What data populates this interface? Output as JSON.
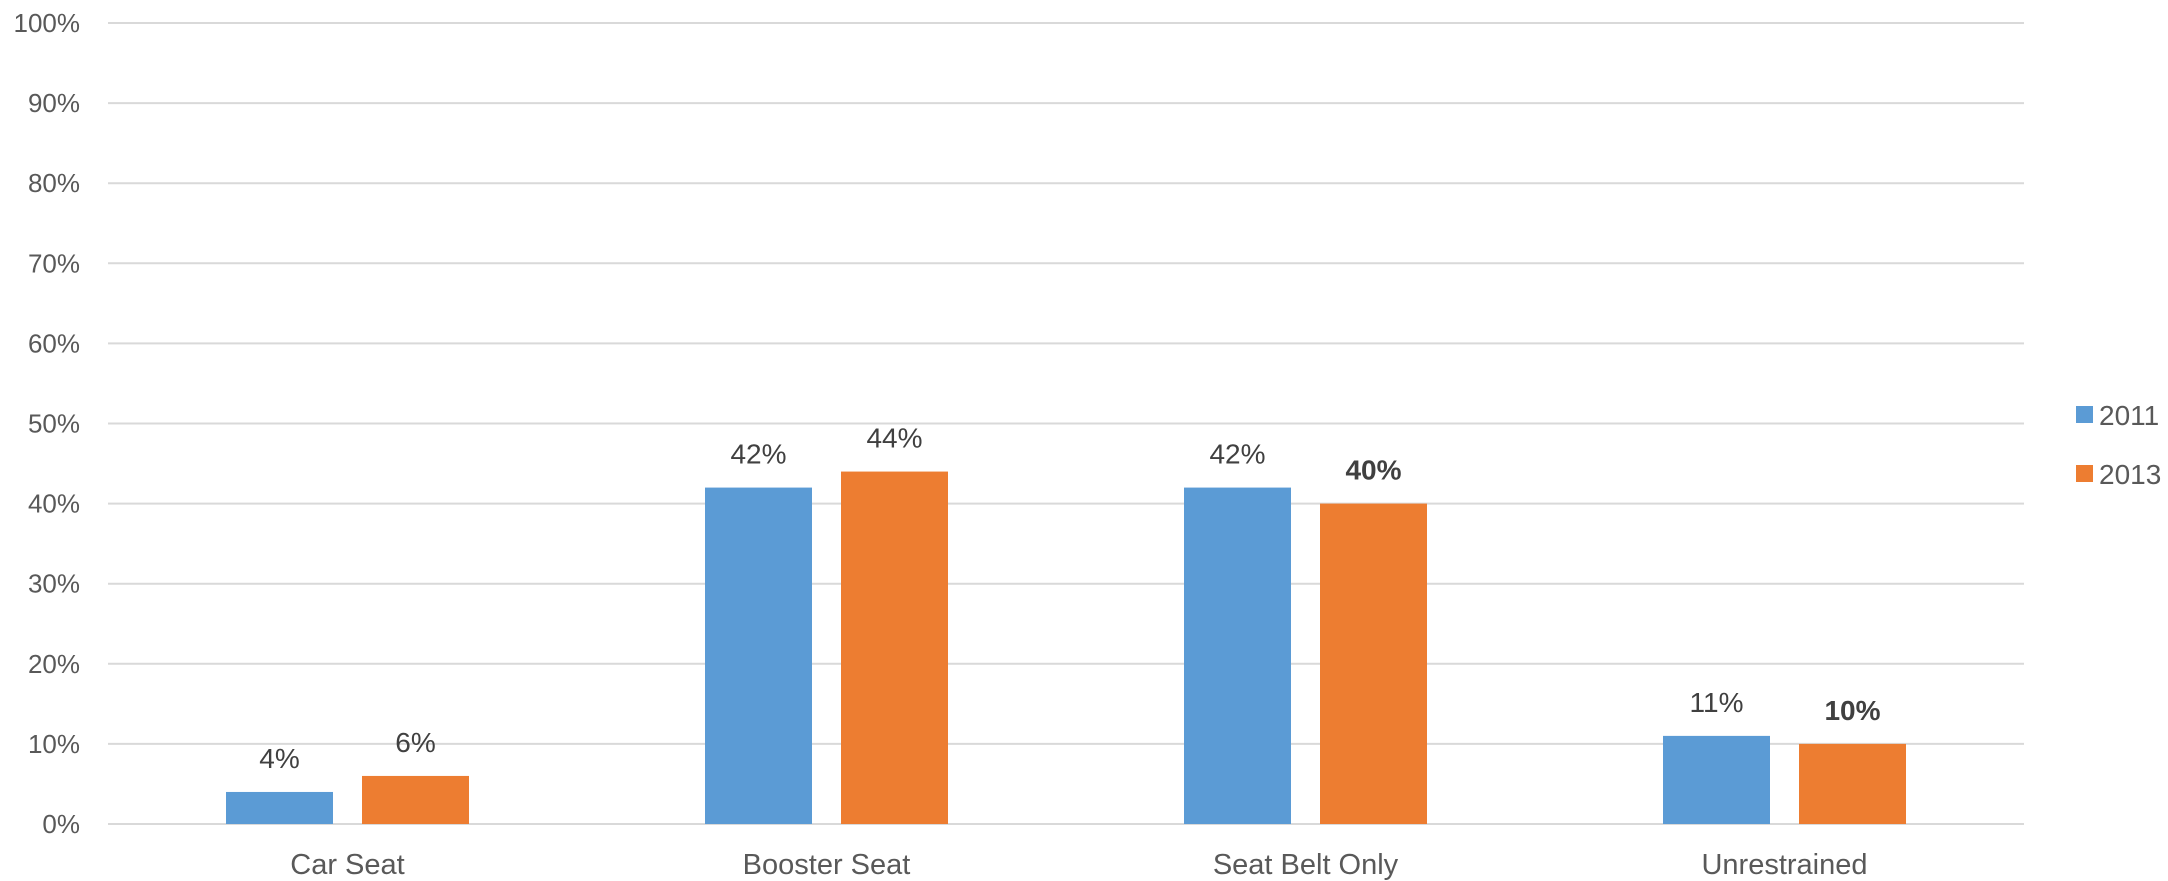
{
  "chart_data": {
    "type": "bar",
    "categories": [
      "Car Seat",
      "Booster Seat",
      "Seat Belt Only",
      "Unrestrained"
    ],
    "series": [
      {
        "name": "2011",
        "values": [
          4,
          42,
          42,
          11
        ],
        "labels": [
          "4%",
          "42%",
          "42%",
          "11%"
        ],
        "bold": [
          false,
          false,
          false,
          false
        ],
        "color": "#5b9bd5"
      },
      {
        "name": "2013",
        "values": [
          6,
          44,
          40,
          10
        ],
        "labels": [
          "6%",
          "44%",
          "40%",
          "10%"
        ],
        "bold": [
          false,
          false,
          true,
          true
        ],
        "color": "#ed7d31"
      }
    ],
    "ylim": [
      0,
      100
    ],
    "yticks": [
      "0%",
      "10%",
      "20%",
      "30%",
      "40%",
      "50%",
      "60%",
      "70%",
      "80%",
      "90%",
      "100%"
    ],
    "grid": true,
    "legend_position": "right"
  }
}
